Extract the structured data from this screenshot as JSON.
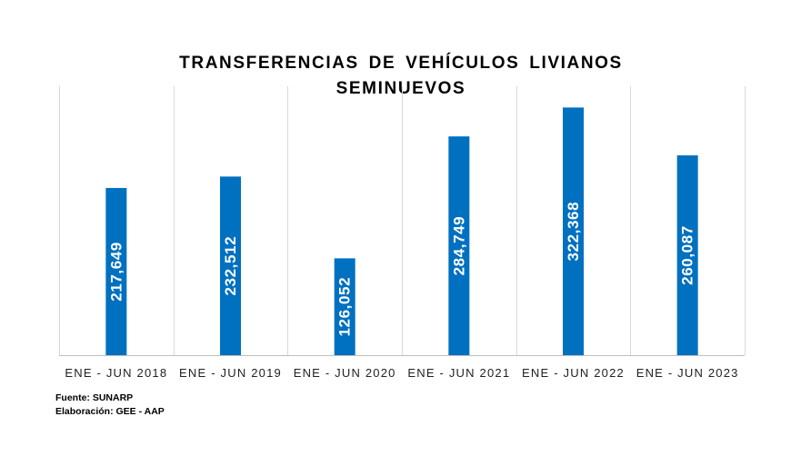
{
  "chart_data": {
    "type": "bar",
    "title": "TRANSFERENCIAS  DE VEHÍCULOS LIVIANOS SEMINUEVOS",
    "title_lines": [
      "TRANSFERENCIAS  DE VEHÍCULOS  LIVIANOS",
      "SEMINUEVOS"
    ],
    "categories": [
      "ENE - JUN 2018",
      "ENE - JUN 2019",
      "ENE - JUN 2020",
      "ENE - JUN 2021",
      "ENE - JUN 2022",
      "ENE - JUN 2023"
    ],
    "values": [
      217649,
      232512,
      126052,
      284749,
      322368,
      260087
    ],
    "data_labels": [
      "217,649",
      "232,512",
      "126,052",
      "284,749",
      "322,368",
      "260,087"
    ],
    "xlabel": "",
    "ylabel": "",
    "ylim": [
      0,
      350000
    ],
    "grid": "vertical category separators",
    "legend": "none",
    "bar_color": "#0070c0",
    "gridline_color": "#d9d9d9",
    "axis_color": "#bfbfbf"
  },
  "footer": {
    "source": "Fuente: SUNARP",
    "credit": "Elaboración: GEE - AAP"
  }
}
